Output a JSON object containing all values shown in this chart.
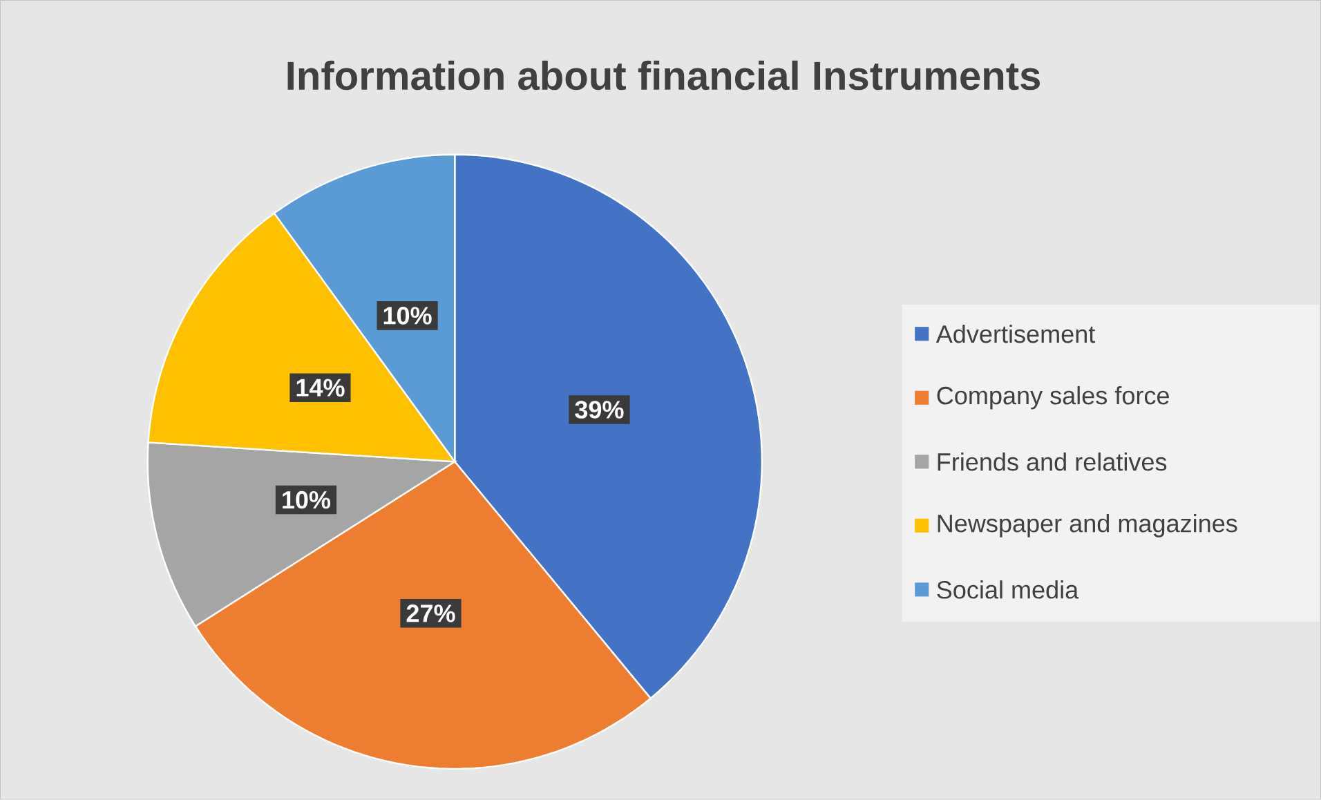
{
  "chart_data": {
    "type": "pie",
    "title": "Information about financial Instruments",
    "categories": [
      "Advertisement",
      "Company sales force",
      "Friends and relatives",
      "Newspaper and magazines",
      "Social media"
    ],
    "values": [
      39,
      27,
      10,
      14,
      10
    ],
    "value_labels": [
      "39%",
      "27%",
      "10%",
      "14%",
      "10%"
    ],
    "colors": [
      "#4472c4",
      "#ed7d31",
      "#a5a5a5",
      "#ffc000",
      "#5b9bd5"
    ],
    "legend": "right"
  }
}
